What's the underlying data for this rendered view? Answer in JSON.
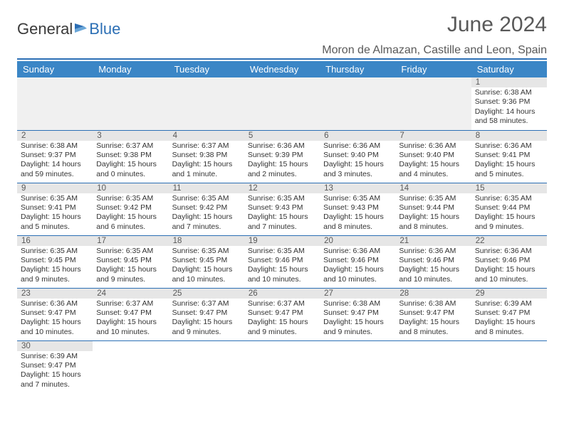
{
  "logo": {
    "text1": "General",
    "text2": "Blue"
  },
  "title": "June 2024",
  "location": "Moron de Almazan, Castille and Leon, Spain",
  "colors": {
    "header_bg": "#3b86c6",
    "header_text": "#ffffff",
    "accent": "#2c6fb5",
    "daynum_bg": "#e6e6e6",
    "empty_bg": "#f0f0f0",
    "text": "#333333",
    "title_text": "#595959"
  },
  "weekdays": [
    "Sunday",
    "Monday",
    "Tuesday",
    "Wednesday",
    "Thursday",
    "Friday",
    "Saturday"
  ],
  "weeks": [
    [
      null,
      null,
      null,
      null,
      null,
      null,
      {
        "d": "1",
        "sr": "6:38 AM",
        "ss": "9:36 PM",
        "dl": "14 hours and 58 minutes."
      }
    ],
    [
      {
        "d": "2",
        "sr": "6:38 AM",
        "ss": "9:37 PM",
        "dl": "14 hours and 59 minutes."
      },
      {
        "d": "3",
        "sr": "6:37 AM",
        "ss": "9:38 PM",
        "dl": "15 hours and 0 minutes."
      },
      {
        "d": "4",
        "sr": "6:37 AM",
        "ss": "9:38 PM",
        "dl": "15 hours and 1 minute."
      },
      {
        "d": "5",
        "sr": "6:36 AM",
        "ss": "9:39 PM",
        "dl": "15 hours and 2 minutes."
      },
      {
        "d": "6",
        "sr": "6:36 AM",
        "ss": "9:40 PM",
        "dl": "15 hours and 3 minutes."
      },
      {
        "d": "7",
        "sr": "6:36 AM",
        "ss": "9:40 PM",
        "dl": "15 hours and 4 minutes."
      },
      {
        "d": "8",
        "sr": "6:36 AM",
        "ss": "9:41 PM",
        "dl": "15 hours and 5 minutes."
      }
    ],
    [
      {
        "d": "9",
        "sr": "6:35 AM",
        "ss": "9:41 PM",
        "dl": "15 hours and 5 minutes."
      },
      {
        "d": "10",
        "sr": "6:35 AM",
        "ss": "9:42 PM",
        "dl": "15 hours and 6 minutes."
      },
      {
        "d": "11",
        "sr": "6:35 AM",
        "ss": "9:42 PM",
        "dl": "15 hours and 7 minutes."
      },
      {
        "d": "12",
        "sr": "6:35 AM",
        "ss": "9:43 PM",
        "dl": "15 hours and 7 minutes."
      },
      {
        "d": "13",
        "sr": "6:35 AM",
        "ss": "9:43 PM",
        "dl": "15 hours and 8 minutes."
      },
      {
        "d": "14",
        "sr": "6:35 AM",
        "ss": "9:44 PM",
        "dl": "15 hours and 8 minutes."
      },
      {
        "d": "15",
        "sr": "6:35 AM",
        "ss": "9:44 PM",
        "dl": "15 hours and 9 minutes."
      }
    ],
    [
      {
        "d": "16",
        "sr": "6:35 AM",
        "ss": "9:45 PM",
        "dl": "15 hours and 9 minutes."
      },
      {
        "d": "17",
        "sr": "6:35 AM",
        "ss": "9:45 PM",
        "dl": "15 hours and 9 minutes."
      },
      {
        "d": "18",
        "sr": "6:35 AM",
        "ss": "9:45 PM",
        "dl": "15 hours and 10 minutes."
      },
      {
        "d": "19",
        "sr": "6:35 AM",
        "ss": "9:46 PM",
        "dl": "15 hours and 10 minutes."
      },
      {
        "d": "20",
        "sr": "6:36 AM",
        "ss": "9:46 PM",
        "dl": "15 hours and 10 minutes."
      },
      {
        "d": "21",
        "sr": "6:36 AM",
        "ss": "9:46 PM",
        "dl": "15 hours and 10 minutes."
      },
      {
        "d": "22",
        "sr": "6:36 AM",
        "ss": "9:46 PM",
        "dl": "15 hours and 10 minutes."
      }
    ],
    [
      {
        "d": "23",
        "sr": "6:36 AM",
        "ss": "9:47 PM",
        "dl": "15 hours and 10 minutes."
      },
      {
        "d": "24",
        "sr": "6:37 AM",
        "ss": "9:47 PM",
        "dl": "15 hours and 10 minutes."
      },
      {
        "d": "25",
        "sr": "6:37 AM",
        "ss": "9:47 PM",
        "dl": "15 hours and 9 minutes."
      },
      {
        "d": "26",
        "sr": "6:37 AM",
        "ss": "9:47 PM",
        "dl": "15 hours and 9 minutes."
      },
      {
        "d": "27",
        "sr": "6:38 AM",
        "ss": "9:47 PM",
        "dl": "15 hours and 9 minutes."
      },
      {
        "d": "28",
        "sr": "6:38 AM",
        "ss": "9:47 PM",
        "dl": "15 hours and 8 minutes."
      },
      {
        "d": "29",
        "sr": "6:39 AM",
        "ss": "9:47 PM",
        "dl": "15 hours and 8 minutes."
      }
    ],
    [
      {
        "d": "30",
        "sr": "6:39 AM",
        "ss": "9:47 PM",
        "dl": "15 hours and 7 minutes."
      },
      null,
      null,
      null,
      null,
      null,
      null
    ]
  ],
  "labels": {
    "sunrise": "Sunrise: ",
    "sunset": "Sunset: ",
    "daylight": "Daylight: "
  }
}
